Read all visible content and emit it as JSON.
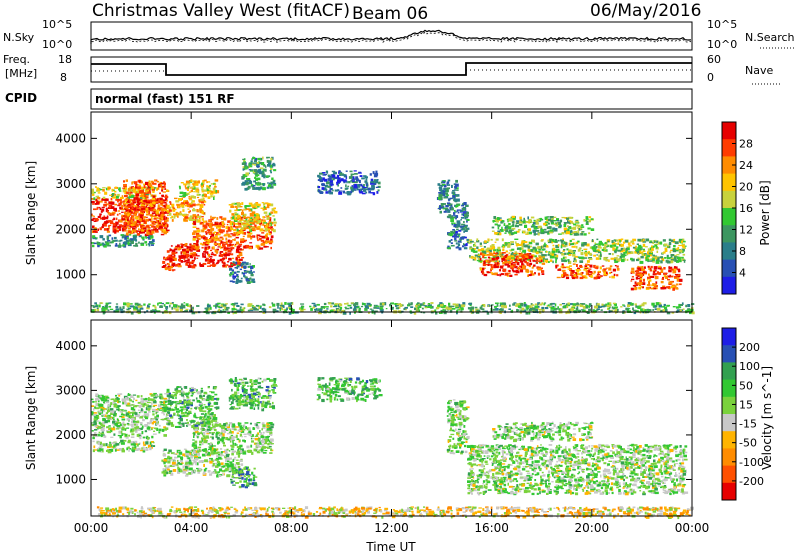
{
  "header": {
    "station": "Christmas Valley West (fitACF)",
    "beam": "Beam 06",
    "date": "06/May/2016"
  },
  "top_panels": {
    "nsky_label": "N.Sky",
    "nsearch_label": "N.Search",
    "nsky_ticks": [
      "10^5",
      "10^0"
    ],
    "nsearch_ticks": [
      "10^5",
      "10^0"
    ],
    "freq_label_1": "Freq.",
    "freq_label_2": "[MHz]",
    "freq_ticks": [
      "18",
      "8"
    ],
    "nave_label": "Nave",
    "nave_ticks": [
      "60",
      "0"
    ],
    "cpid_label": "CPID",
    "cpid_text": "normal (fast) 151 RF"
  },
  "chart_data": [
    {
      "type": "heatmap",
      "name": "power-panel",
      "ylabel": "Slant Range [km]",
      "ylim": [
        180,
        4580
      ],
      "yticks": [
        1000,
        2000,
        3000,
        4000
      ],
      "xlim": [
        0,
        24
      ],
      "xticks": [
        "00:00",
        "04:00",
        "08:00",
        "12:00",
        "16:00",
        "20:00",
        "00:00"
      ],
      "colorbar": {
        "label": "Power [dB]",
        "ticks": [
          "28",
          "24",
          "20",
          "16",
          "12",
          "8",
          "4"
        ],
        "colors": [
          "#e60000",
          "#ff3c00",
          "#ff8c00",
          "#ffc400",
          "#c8d23c",
          "#32c832",
          "#3c9660",
          "#2a7e8a",
          "#2850b4",
          "#1e1ee6"
        ]
      },
      "blobs": [
        {
          "t0": 0.0,
          "t1": 3.0,
          "r0": 1950,
          "r1": 2700,
          "level": 0.88
        },
        {
          "t0": 0.0,
          "t1": 2.5,
          "r0": 2700,
          "r1": 2950,
          "level": 0.55
        },
        {
          "t0": 0.0,
          "t1": 2.5,
          "r0": 1650,
          "r1": 1900,
          "level": 0.3
        },
        {
          "t0": 1.2,
          "t1": 3.0,
          "r0": 1900,
          "r1": 3100,
          "level": 0.82
        },
        {
          "t0": 2.8,
          "t1": 3.3,
          "r0": 1100,
          "r1": 1400,
          "level": 0.9
        },
        {
          "t0": 3.0,
          "t1": 6.0,
          "r0": 1200,
          "r1": 1700,
          "level": 0.93
        },
        {
          "t0": 4.0,
          "t1": 7.2,
          "r0": 1600,
          "r1": 2300,
          "level": 0.8
        },
        {
          "t0": 5.5,
          "t1": 7.3,
          "r0": 2000,
          "r1": 2600,
          "level": 0.6
        },
        {
          "t0": 3.0,
          "t1": 4.5,
          "r0": 2200,
          "r1": 2700,
          "level": 0.7
        },
        {
          "t0": 3.5,
          "t1": 5.0,
          "r0": 2700,
          "r1": 3100,
          "level": 0.6
        },
        {
          "t0": 6.0,
          "t1": 7.3,
          "r0": 2900,
          "r1": 3600,
          "level": 0.35
        },
        {
          "t0": 5.5,
          "t1": 6.5,
          "r0": 850,
          "r1": 1300,
          "level": 0.25
        },
        {
          "t0": 15.0,
          "t1": 23.7,
          "r0": 1300,
          "r1": 1800,
          "level": 0.5
        },
        {
          "t0": 15.5,
          "t1": 18.0,
          "r0": 1000,
          "r1": 1500,
          "level": 0.85
        },
        {
          "t0": 18.5,
          "t1": 21.0,
          "r0": 950,
          "r1": 1250,
          "level": 0.8
        },
        {
          "t0": 21.5,
          "t1": 23.5,
          "r0": 700,
          "r1": 1200,
          "level": 0.85
        },
        {
          "t0": 16.0,
          "t1": 20.0,
          "r0": 1900,
          "r1": 2300,
          "level": 0.45
        },
        {
          "t0": 14.2,
          "t1": 15.0,
          "r0": 1600,
          "r1": 2600,
          "level": 0.25
        },
        {
          "t0": 13.8,
          "t1": 14.6,
          "r0": 2400,
          "r1": 3100,
          "level": 0.3
        },
        {
          "t0": 9.0,
          "t1": 11.5,
          "r0": 2800,
          "r1": 3300,
          "level": 0.2
        },
        {
          "t0": 0.0,
          "t1": 24.0,
          "r0": 180,
          "r1": 400,
          "level": 0.4
        }
      ]
    },
    {
      "type": "heatmap",
      "name": "velocity-panel",
      "ylabel": "Slant Range [km]",
      "ylim": [
        180,
        4580
      ],
      "yticks": [
        1000,
        2000,
        3000,
        4000
      ],
      "xlim": [
        0,
        24
      ],
      "xticks": [
        "00:00",
        "04:00",
        "08:00",
        "12:00",
        "16:00",
        "20:00",
        "00:00"
      ],
      "xlabel": "Time UT",
      "colorbar": {
        "label": "Velocity [m s^-1]",
        "ticks": [
          "200",
          "100",
          "50",
          "15",
          "-15",
          "-50",
          "-100",
          "-200"
        ],
        "colors": [
          "#1e1ee6",
          "#2850b4",
          "#32a050",
          "#32c832",
          "#7ad23c",
          "#c8c8c8",
          "#ffb400",
          "#ff8c00",
          "#ff5000",
          "#e60000"
        ]
      },
      "blobs": [
        {
          "t0": 0.0,
          "t1": 3.0,
          "r0": 1950,
          "r1": 2950,
          "level": 0.55
        },
        {
          "t0": 0.0,
          "t1": 2.5,
          "r0": 1650,
          "r1": 1900,
          "level": 0.55
        },
        {
          "t0": 2.8,
          "t1": 6.0,
          "r0": 1100,
          "r1": 1700,
          "level": 0.55
        },
        {
          "t0": 4.0,
          "t1": 7.2,
          "r0": 1600,
          "r1": 2300,
          "level": 0.55
        },
        {
          "t0": 3.0,
          "t1": 5.0,
          "r0": 2200,
          "r1": 3100,
          "level": 0.65
        },
        {
          "t0": 5.5,
          "t1": 7.3,
          "r0": 2600,
          "r1": 3300,
          "level": 0.65
        },
        {
          "t0": 5.5,
          "t1": 6.5,
          "r0": 850,
          "r1": 1300,
          "level": 0.7
        },
        {
          "t0": 15.0,
          "t1": 23.7,
          "r0": 700,
          "r1": 1800,
          "level": 0.55
        },
        {
          "t0": 16.0,
          "t1": 20.0,
          "r0": 1900,
          "r1": 2300,
          "level": 0.55
        },
        {
          "t0": 14.2,
          "t1": 15.0,
          "r0": 1600,
          "r1": 2800,
          "level": 0.55
        },
        {
          "t0": 9.0,
          "t1": 11.5,
          "r0": 2800,
          "r1": 3300,
          "level": 0.65
        },
        {
          "t0": 0.0,
          "t1": 24.0,
          "r0": 180,
          "r1": 400,
          "level": 0.4
        }
      ]
    }
  ]
}
